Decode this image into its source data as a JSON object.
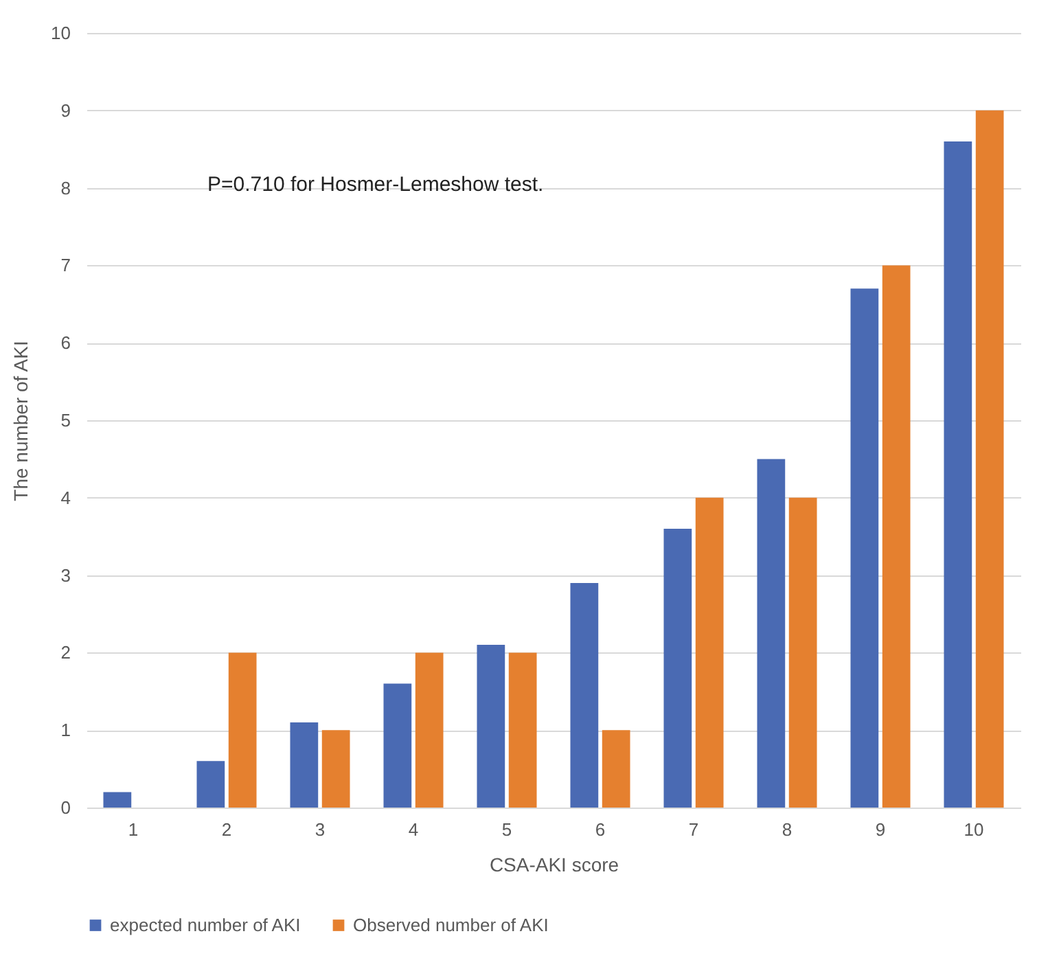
{
  "chart_data": {
    "type": "bar",
    "xlabel": "CSA-AKI score",
    "ylabel": "The number of AKI",
    "categories": [
      "1",
      "2",
      "3",
      "4",
      "5",
      "6",
      "7",
      "8",
      "9",
      "10"
    ],
    "series": [
      {
        "name": "expected number of AKI",
        "color": "#4a6ab3",
        "values": [
          0.2,
          0.6,
          1.1,
          1.6,
          2.1,
          2.9,
          3.6,
          4.5,
          6.7,
          8.6
        ]
      },
      {
        "name": "Observed number of AKI",
        "color": "#e5802f",
        "values": [
          0,
          2,
          1,
          2,
          2,
          1,
          4,
          4,
          7,
          9
        ]
      }
    ],
    "ylim": [
      0,
      10
    ],
    "yticks": [
      0,
      1,
      2,
      3,
      4,
      5,
      6,
      7,
      8,
      9,
      10
    ],
    "grid": "y",
    "legend": "bottom",
    "annotations": [
      "P=0.710 for Hosmer-Lemeshow test."
    ]
  }
}
